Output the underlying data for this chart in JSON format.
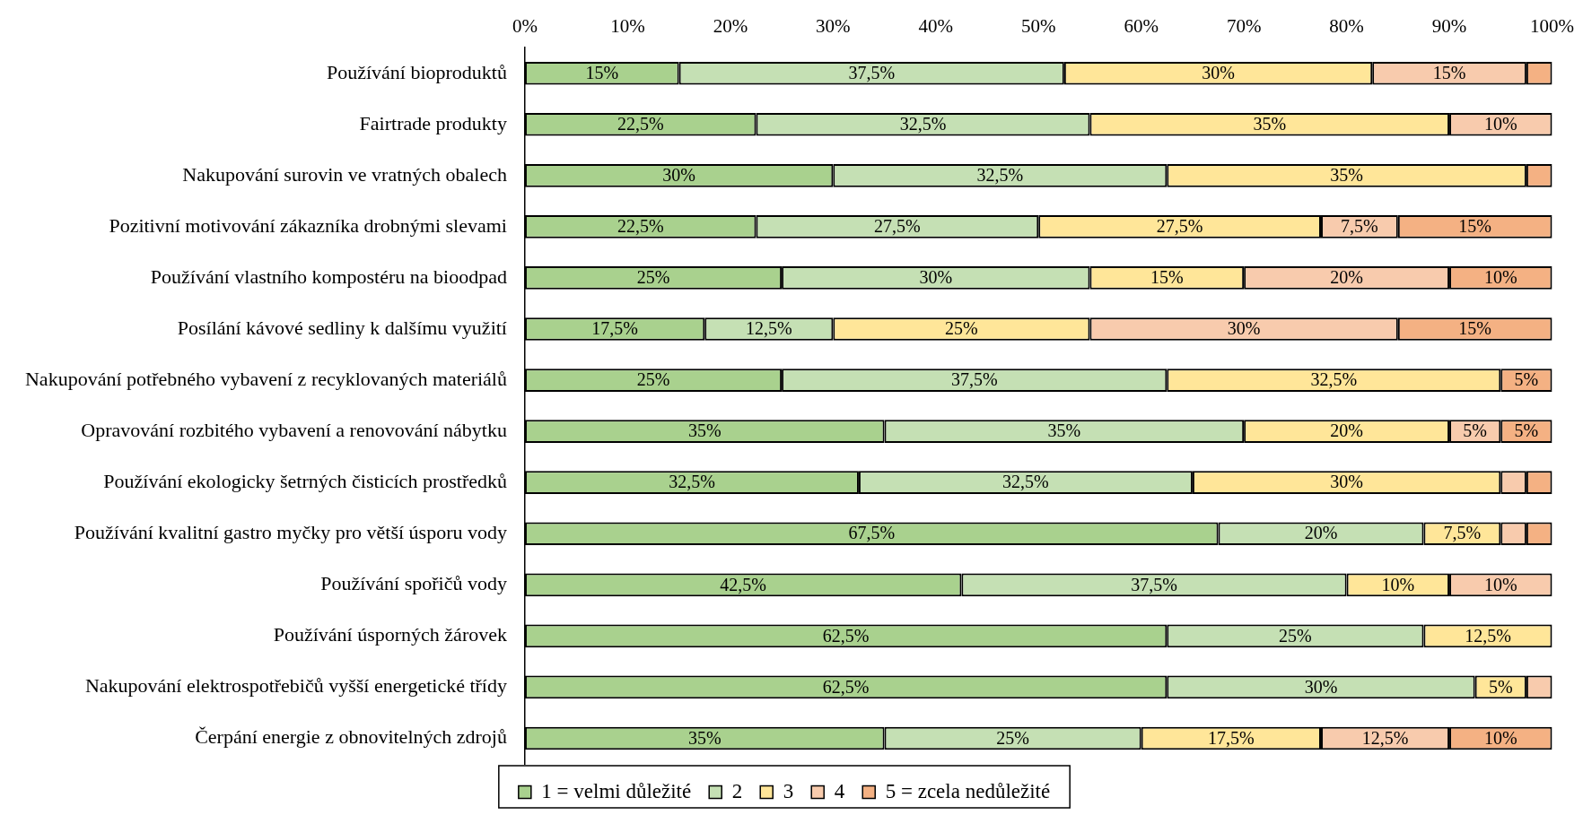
{
  "chart_data": {
    "type": "bar",
    "orientation": "horizontal",
    "stacked": true,
    "legend": "bottom",
    "grid": false,
    "categories": [
      "Používání bioproduktů",
      "Fairtrade produkty",
      "Nakupování surovin ve vratných obalech",
      "Pozitivní motivování zákazníka drobnými slevami",
      "Používání vlastního kompostéru na bioodpad",
      "Posílání kávové sedliny k dalšímu využití",
      "Nakupování potřebného vybavení z recyklovaných materiálů",
      "Opravování rozbitého vybavení a renovování nábytku",
      "Používání ekologicky šetrných čisticích prostředků",
      "Používání kvalitní gastro myčky pro větší úsporu vody",
      "Používání spořičů vody",
      "Používání úsporných žárovek",
      "Nakupování elektrospotřebičů vyšší energetické třídy",
      "Čerpání energie z obnovitelných zdrojů"
    ],
    "xlim": [
      0,
      100
    ],
    "xticks": [
      {
        "value": 0,
        "label": "0%"
      },
      {
        "value": 10,
        "label": "10%"
      },
      {
        "value": 20,
        "label": "20%"
      },
      {
        "value": 30,
        "label": "30%"
      },
      {
        "value": 40,
        "label": "40%"
      },
      {
        "value": 50,
        "label": "50%"
      },
      {
        "value": 60,
        "label": "60%"
      },
      {
        "value": 70,
        "label": "70%"
      },
      {
        "value": 80,
        "label": "80%"
      },
      {
        "value": 90,
        "label": "90%"
      },
      {
        "value": 100,
        "label": "100%"
      }
    ],
    "series": [
      {
        "name": "1 = velmi důležité",
        "color": "#a9d18e",
        "values": [
          15,
          22.5,
          30,
          22.5,
          25,
          17.5,
          25,
          35,
          32.5,
          67.5,
          42.5,
          62.5,
          62.5,
          35
        ],
        "value_labels": [
          "15%",
          "22,5%",
          "30%",
          "22,5%",
          "25%",
          "17,5%",
          "25%",
          "35%",
          "32,5%",
          "67,5%",
          "42,5%",
          "62,5%",
          "62,5%",
          "35%"
        ]
      },
      {
        "name": "2",
        "color": "#c5e0b4",
        "values": [
          37.5,
          32.5,
          32.5,
          27.5,
          30,
          12.5,
          37.5,
          35,
          32.5,
          20,
          37.5,
          25,
          30,
          25
        ],
        "value_labels": [
          "37,5%",
          "32,5%",
          "32,5%",
          "27,5%",
          "30%",
          "12,5%",
          "37,5%",
          "35%",
          "32,5%",
          "20%",
          "37,5%",
          "25%",
          "30%",
          "25%"
        ]
      },
      {
        "name": "3",
        "color": "#ffe699",
        "values": [
          30,
          35,
          35,
          27.5,
          15,
          25,
          32.5,
          20,
          30,
          7.5,
          10,
          12.5,
          5,
          17.5
        ],
        "value_labels": [
          "30%",
          "35%",
          "35%",
          "27,5%",
          "15%",
          "25%",
          "32,5%",
          "20%",
          "30%",
          "7,5%",
          "10%",
          "12,5%",
          "5%",
          "17,5%"
        ]
      },
      {
        "name": "4",
        "color": "#f8cbad",
        "values": [
          15,
          10,
          null,
          7.5,
          20,
          30,
          null,
          5,
          2.5,
          2.5,
          10,
          null,
          2.5,
          12.5
        ],
        "value_labels": [
          "15%",
          "10%",
          null,
          "7,5%",
          "20%",
          "30%",
          null,
          "5%",
          null,
          null,
          "10%",
          null,
          null,
          "12,5%"
        ]
      },
      {
        "name": "5 = zcela nedůležité",
        "color": "#f4b183",
        "values": [
          2.5,
          null,
          2.5,
          15,
          10,
          15,
          5,
          5,
          2.5,
          2.5,
          null,
          null,
          null,
          10
        ],
        "value_labels": [
          null,
          null,
          null,
          "15%",
          "10%",
          "15%",
          "5%",
          "5%",
          null,
          null,
          null,
          null,
          null,
          "10%"
        ]
      }
    ]
  }
}
